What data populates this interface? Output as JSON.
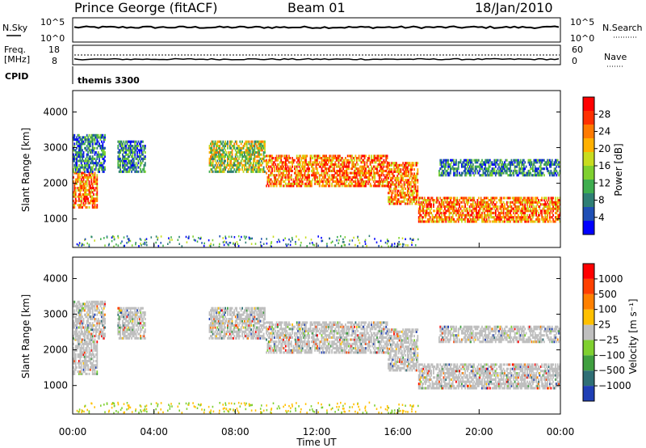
{
  "header": {
    "station": "Prince George (fitACF)",
    "beam": "Beam 01",
    "date": "18/Jan/2010"
  },
  "top_panels": {
    "nsky_label": "N.Sky",
    "nsearch_label": "N.Search",
    "nsky_ticks": [
      "10^5",
      "10^0"
    ],
    "nsearch_ticks": [
      "10^5",
      "10^0"
    ],
    "freq_label_line1": "Freq.",
    "freq_label_line2": "[MHz]",
    "freq_ticks": [
      "18",
      "8"
    ],
    "nave_label": "Nave",
    "nave_ticks": [
      "60",
      "0"
    ],
    "cpid_label": "CPID",
    "cpid_value": "themis 3300"
  },
  "colorbars": {
    "power": {
      "label": "Power [dB]",
      "ticks": [
        "28",
        "24",
        "20",
        "16",
        "12",
        "8",
        "4"
      ],
      "colors": [
        "#0000ff",
        "#1f4fb5",
        "#2f7f75",
        "#3fae4f",
        "#7fd02f",
        "#c8dc1f",
        "#ffb000",
        "#ff7a00",
        "#ff3000",
        "#ff0000"
      ]
    },
    "velocity": {
      "label": "Velocity [m s⁻¹]",
      "ticks": [
        "1000",
        "500",
        "100",
        "25",
        "−25",
        "−100",
        "−500",
        "−1000"
      ],
      "colors": [
        "#1f3fb5",
        "#2f6f75",
        "#3f9f3f",
        "#7fd02f",
        "#bfbfbf",
        "#ffc000",
        "#ff8000",
        "#ff4000",
        "#ff0000"
      ]
    }
  },
  "chart_data": [
    {
      "type": "heatmap",
      "name": "power",
      "xlabel": "Time UT",
      "ylabel": "Slant Range [km]",
      "xlim": [
        0,
        24
      ],
      "ylim": [
        200,
        4600
      ],
      "x_ticks": [
        "00:00",
        "04:00",
        "08:00",
        "12:00",
        "16:00",
        "20:00",
        "00:00"
      ],
      "y_ticks": [
        1000,
        2000,
        3000,
        4000
      ],
      "regions": [
        {
          "t_start": 0.0,
          "t_end": 1.2,
          "r_start": 1300,
          "r_end": 2300,
          "level": "high"
        },
        {
          "t_start": 0.0,
          "t_end": 1.6,
          "r_start": 2300,
          "r_end": 3400,
          "level": "low"
        },
        {
          "t_start": 2.2,
          "t_end": 3.6,
          "r_start": 2300,
          "r_end": 3200,
          "level": "low"
        },
        {
          "t_start": 6.7,
          "t_end": 9.5,
          "r_start": 2300,
          "r_end": 3200,
          "level": "mid"
        },
        {
          "t_start": 9.5,
          "t_end": 15.5,
          "r_start": 1900,
          "r_end": 2800,
          "level": "high"
        },
        {
          "t_start": 15.5,
          "t_end": 17.0,
          "r_start": 1400,
          "r_end": 2600,
          "level": "high"
        },
        {
          "t_start": 17.0,
          "t_end": 24.0,
          "r_start": 900,
          "r_end": 1600,
          "level": "high"
        },
        {
          "t_start": 18.0,
          "t_end": 24.0,
          "r_start": 2200,
          "r_end": 2700,
          "level": "low"
        }
      ]
    },
    {
      "type": "heatmap",
      "name": "velocity",
      "xlabel": "Time UT",
      "ylabel": "Slant Range [km]",
      "xlim": [
        0,
        24
      ],
      "ylim": [
        200,
        4600
      ],
      "x_ticks": [
        "00:00",
        "04:00",
        "08:00",
        "12:00",
        "16:00",
        "20:00",
        "00:00"
      ],
      "y_ticks": [
        1000,
        2000,
        3000,
        4000
      ],
      "dominant_value": "25 to -25"
    }
  ]
}
